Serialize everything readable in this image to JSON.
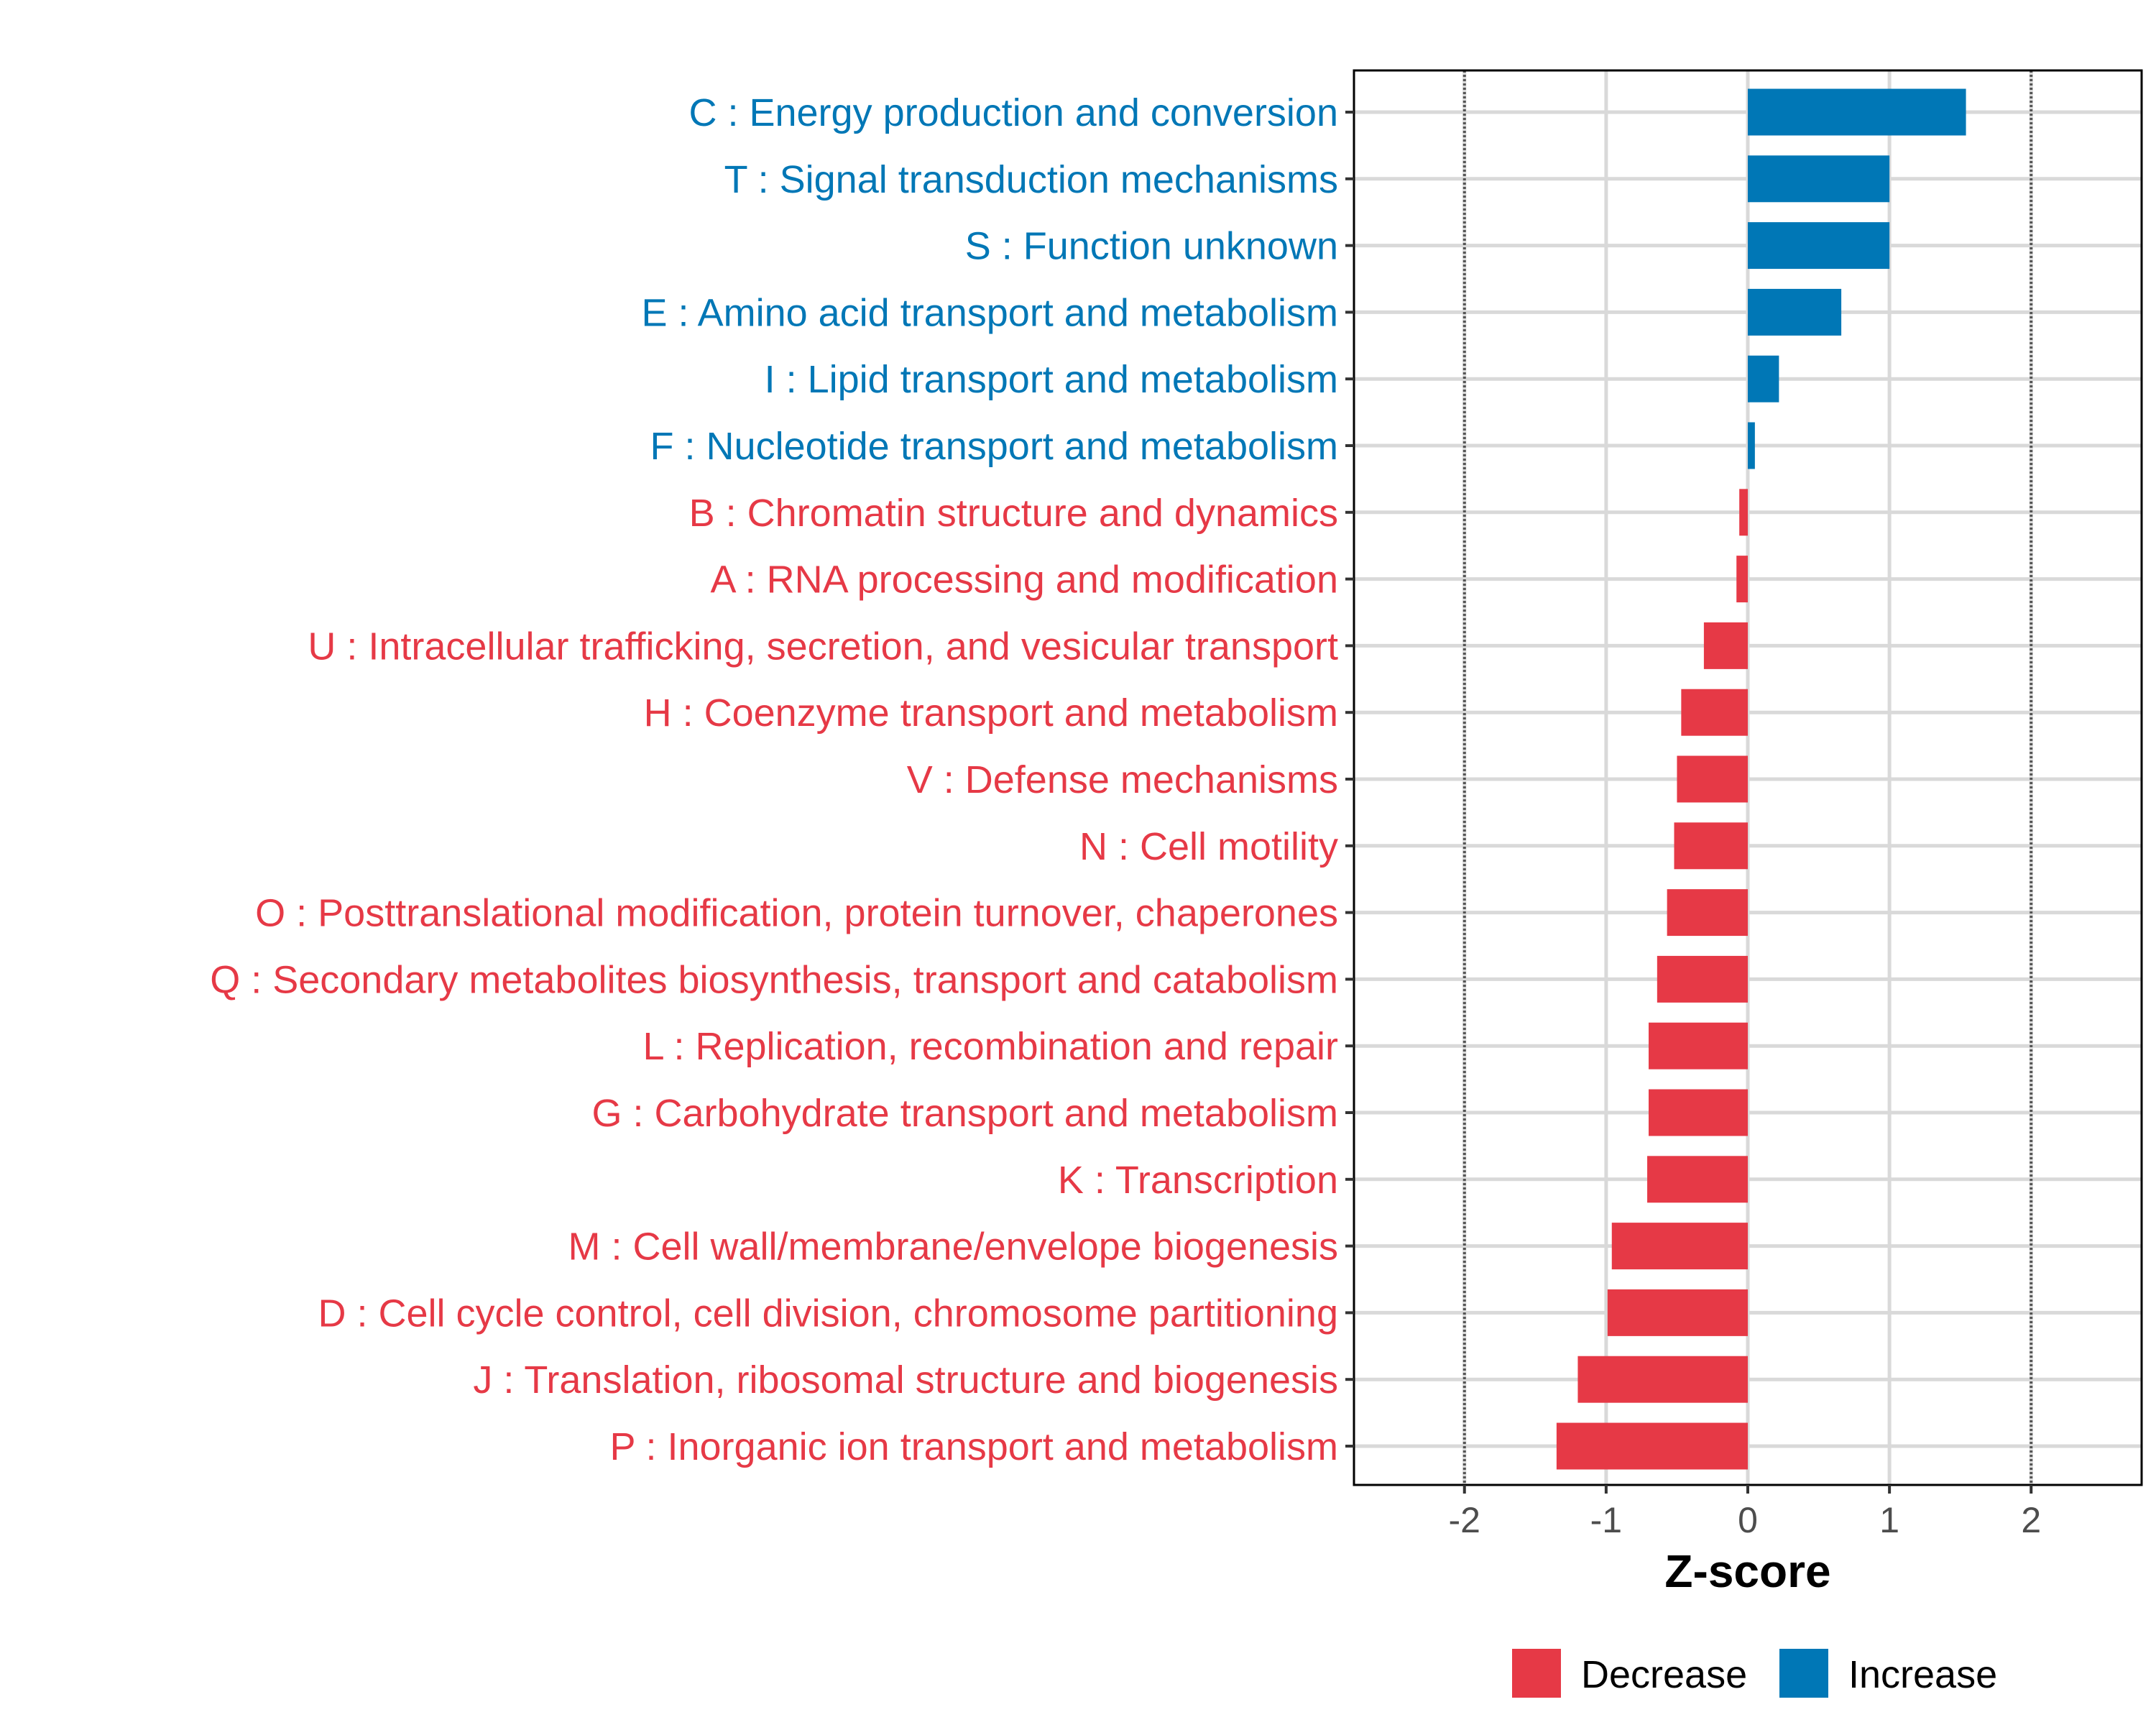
{
  "chart_data": {
    "type": "bar",
    "orientation": "horizontal",
    "title": "",
    "xlabel": "Z-score",
    "ylabel": "",
    "xlim": [
      -2.78,
      2.78
    ],
    "xticks": [
      -2,
      -1,
      0,
      1,
      2
    ],
    "xtick_labels": [
      "-2",
      "-1",
      "0",
      "1",
      "2"
    ],
    "reference_lines": [
      -2,
      2
    ],
    "grid": true,
    "legend_position": "bottom",
    "colors": {
      "Decrease": "#e63946",
      "Increase": "#0077b6"
    },
    "legend": [
      {
        "label": "Decrease",
        "color": "#e63946"
      },
      {
        "label": "Increase",
        "color": "#0077b6"
      }
    ],
    "categories": [
      "C : Energy production and conversion",
      "T : Signal transduction mechanisms",
      "S : Function unknown",
      "E : Amino acid transport and metabolism",
      "I : Lipid transport and metabolism",
      "F : Nucleotide transport and metabolism",
      "B : Chromatin structure and dynamics",
      "A : RNA processing and modification",
      "U : Intracellular trafficking, secretion, and vesicular transport",
      "H : Coenzyme transport and metabolism",
      "V : Defense mechanisms",
      "N : Cell motility",
      "O : Posttranslational modification, protein turnover, chaperones",
      "Q : Secondary metabolites biosynthesis, transport and catabolism",
      "L : Replication, recombination and repair",
      "G : Carbohydrate transport and metabolism",
      "K : Transcription",
      "M : Cell wall/membrane/envelope biogenesis",
      "D : Cell cycle control, cell division, chromosome partitioning",
      "J : Translation, ribosomal structure and biogenesis",
      "P : Inorganic ion transport and metabolism"
    ],
    "values": [
      1.54,
      1.0,
      1.0,
      0.66,
      0.22,
      0.05,
      -0.06,
      -0.08,
      -0.31,
      -0.47,
      -0.5,
      -0.52,
      -0.57,
      -0.64,
      -0.7,
      -0.7,
      -0.71,
      -0.96,
      -0.99,
      -1.2,
      -1.35
    ],
    "groups": [
      "Increase",
      "Increase",
      "Increase",
      "Increase",
      "Increase",
      "Increase",
      "Decrease",
      "Decrease",
      "Decrease",
      "Decrease",
      "Decrease",
      "Decrease",
      "Decrease",
      "Decrease",
      "Decrease",
      "Decrease",
      "Decrease",
      "Decrease",
      "Decrease",
      "Decrease",
      "Decrease"
    ]
  }
}
